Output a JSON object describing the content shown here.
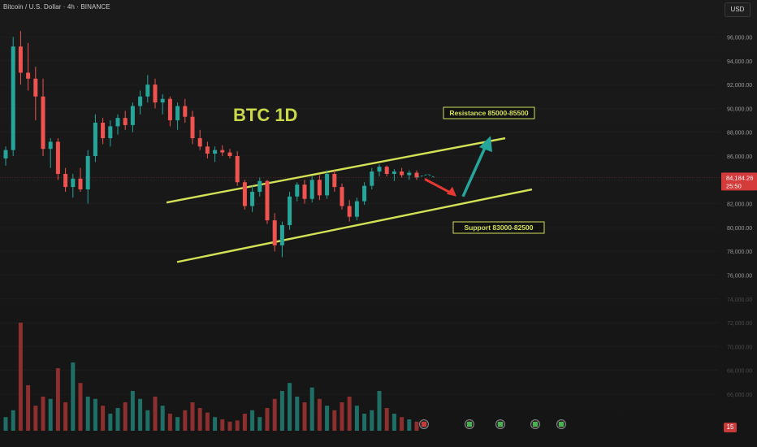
{
  "header": {
    "symbol_title": "Bitcoin / U.S. Dollar · 4h · BINANCE"
  },
  "currency_button": "USD",
  "bottom_badge": "15",
  "colors": {
    "up": "#26a69a",
    "down": "#ef5350",
    "channel": "#d4e157",
    "arrow_up": "#26a69a",
    "arrow_down": "#e53935"
  },
  "chart_data": {
    "type": "candlestick",
    "title": "BTC  1D",
    "price_axis": {
      "ticks": [
        "96,000.00",
        "94,000.00",
        "92,000.00",
        "90,000.00",
        "88,000.00",
        "86,000.00",
        "84,000.00",
        "82,000.00",
        "80,000.00",
        "78,000.00",
        "76,000.00",
        "74,000.00",
        "72,000.00",
        "70,000.00",
        "68,000.00",
        "66,000.00"
      ],
      "ylim": [
        65000,
        97000
      ]
    },
    "last_price": {
      "value": "84,184.26",
      "countdown": "25:50"
    },
    "annotations": {
      "resistance": "Resistance 85000-85500",
      "support": "Support 83000-82500"
    },
    "channel": {
      "upper": [
        [
          0,
          82100
        ],
        [
          1,
          87500
        ]
      ],
      "lower": [
        [
          0,
          77100
        ],
        [
          1,
          83200
        ]
      ]
    },
    "candles": [
      [
        85800,
        86800,
        85200,
        86500
      ],
      [
        86500,
        96000,
        86000,
        95200
      ],
      [
        95200,
        96500,
        92000,
        93000
      ],
      [
        93000,
        95500,
        91500,
        92500
      ],
      [
        92500,
        93500,
        89000,
        91000
      ],
      [
        91000,
        92500,
        86000,
        86600
      ],
      [
        86600,
        87500,
        85000,
        87200
      ],
      [
        87200,
        87500,
        84000,
        84500
      ],
      [
        84500,
        85000,
        83000,
        83400
      ],
      [
        83400,
        84500,
        82500,
        84100
      ],
      [
        84100,
        85000,
        83000,
        83200
      ],
      [
        83200,
        86500,
        82000,
        86000
      ],
      [
        86000,
        89500,
        85500,
        88800
      ],
      [
        88800,
        89200,
        87000,
        87500
      ],
      [
        87500,
        89000,
        86800,
        88500
      ],
      [
        88500,
        89500,
        87800,
        89200
      ],
      [
        89200,
        89800,
        88200,
        88600
      ],
      [
        88600,
        90500,
        88000,
        90200
      ],
      [
        90200,
        91500,
        89500,
        91000
      ],
      [
        91000,
        92800,
        90500,
        92000
      ],
      [
        92000,
        92500,
        90000,
        90500
      ],
      [
        90500,
        91200,
        89500,
        90800
      ],
      [
        90800,
        91000,
        88500,
        89000
      ],
      [
        89000,
        90500,
        88200,
        90200
      ],
      [
        90200,
        90800,
        88800,
        89300
      ],
      [
        89300,
        89800,
        87000,
        87500
      ],
      [
        87500,
        88200,
        86500,
        86800
      ],
      [
        86800,
        87200,
        85800,
        86200
      ],
      [
        86200,
        86800,
        85500,
        86500
      ],
      [
        86500,
        86900,
        86000,
        86300
      ],
      [
        86300,
        86600,
        85800,
        86000
      ],
      [
        86000,
        86400,
        83500,
        83800
      ],
      [
        83800,
        84000,
        81500,
        81800
      ],
      [
        81800,
        83500,
        81300,
        83000
      ],
      [
        83000,
        84200,
        82600,
        83900
      ],
      [
        83900,
        84000,
        80300,
        80600
      ],
      [
        80600,
        81200,
        78000,
        78500
      ],
      [
        78500,
        80500,
        77500,
        80200
      ],
      [
        80200,
        83000,
        79800,
        82600
      ],
      [
        82600,
        83800,
        82200,
        83600
      ],
      [
        83600,
        84000,
        82000,
        82400
      ],
      [
        82400,
        84300,
        82100,
        84000
      ],
      [
        84000,
        84400,
        82300,
        82700
      ],
      [
        82700,
        84800,
        82400,
        84500
      ],
      [
        84500,
        84800,
        83000,
        83400
      ],
      [
        83400,
        83700,
        81500,
        81800
      ],
      [
        81800,
        82300,
        80500,
        80900
      ],
      [
        80900,
        82500,
        80600,
        82200
      ],
      [
        82200,
        83800,
        81900,
        83500
      ],
      [
        83500,
        85000,
        83200,
        84700
      ],
      [
        84700,
        85300,
        84300,
        85100
      ],
      [
        85100,
        85200,
        84300,
        84500
      ],
      [
        84500,
        84900,
        83900,
        84700
      ],
      [
        84700,
        85000,
        84200,
        84400
      ],
      [
        84400,
        84800,
        84000,
        84600
      ],
      [
        84600,
        84800,
        84000,
        84200
      ]
    ],
    "volume_series": {
      "name": "Volume",
      "values": [
        12,
        18,
        95,
        40,
        22,
        30,
        28,
        55,
        25,
        60,
        42,
        30,
        28,
        22,
        15,
        20,
        25,
        35,
        28,
        18,
        30,
        22,
        15,
        12,
        18,
        25,
        20,
        16,
        12,
        10,
        8,
        9,
        15,
        18,
        12,
        20,
        28,
        35,
        42,
        30,
        25,
        38,
        28,
        22,
        18,
        25,
        30,
        22,
        15,
        18,
        35,
        20,
        15,
        12,
        10,
        8
      ]
    }
  }
}
